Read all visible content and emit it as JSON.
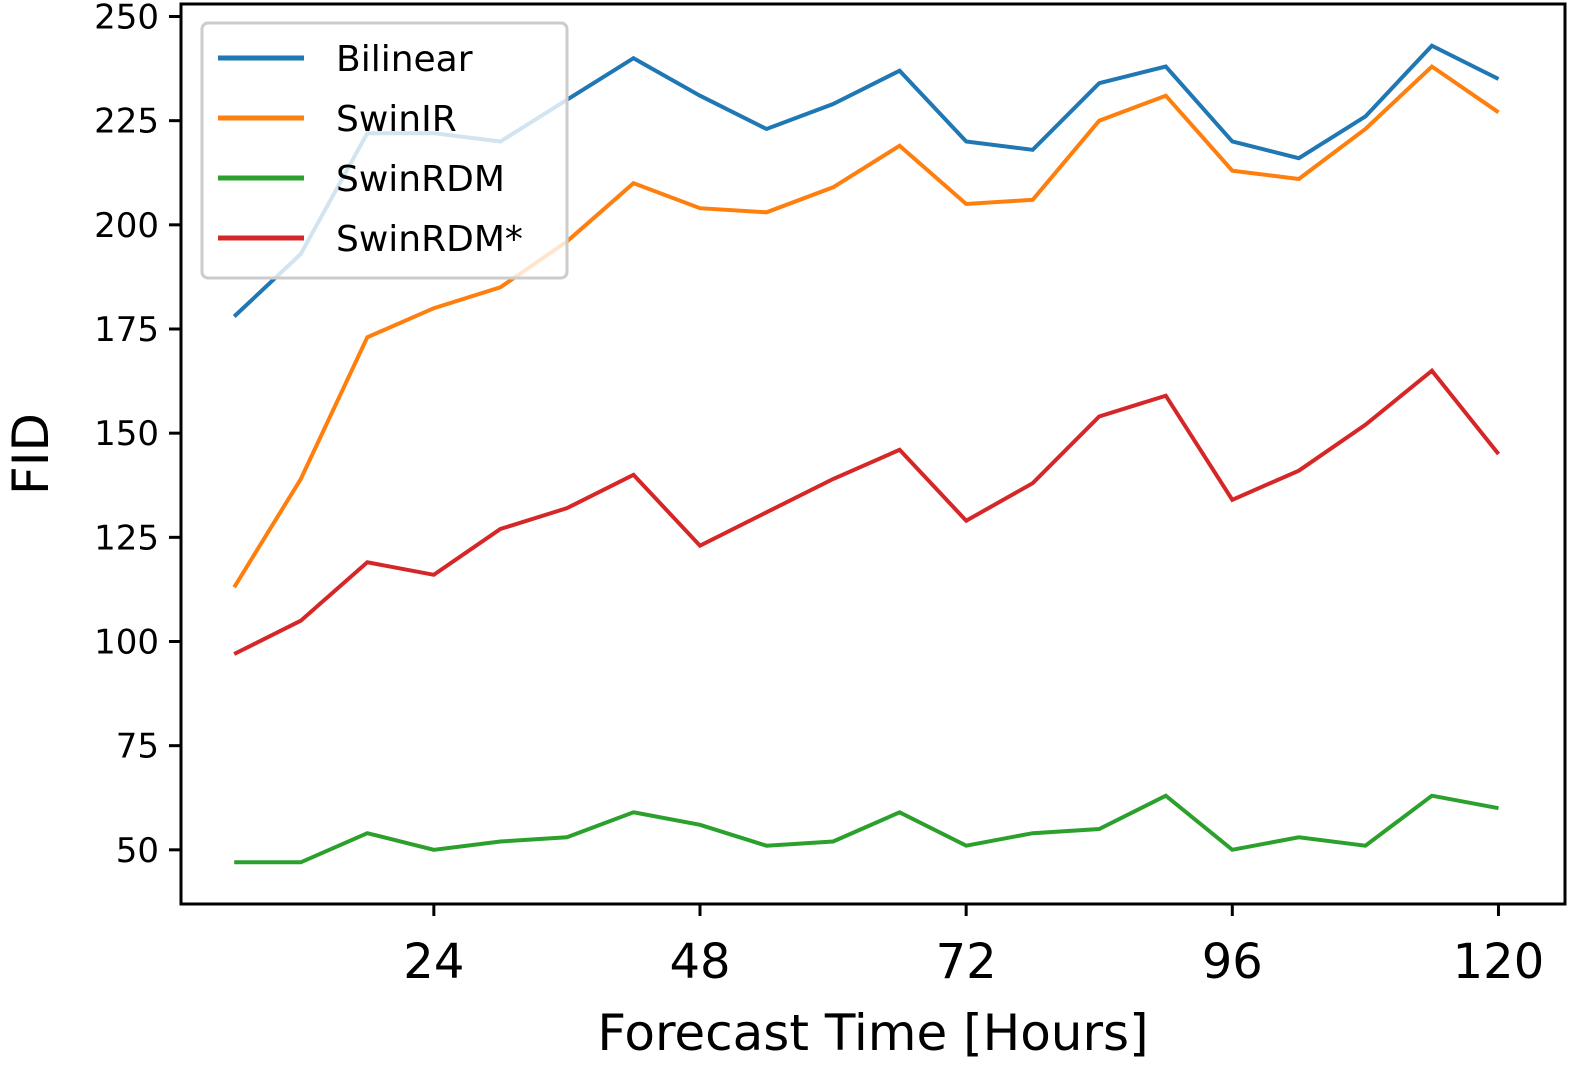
{
  "chart_data": {
    "type": "line",
    "xlabel": "Forecast Time [Hours]",
    "ylabel": "FID",
    "xlim": [
      1.2,
      126
    ],
    "ylim": [
      37,
      253
    ],
    "xticks": [
      24,
      48,
      72,
      96,
      120
    ],
    "yticks": [
      50,
      75,
      100,
      125,
      150,
      175,
      200,
      225,
      250
    ],
    "legend_position": "top-left",
    "grid": false,
    "x": [
      6,
      12,
      18,
      24,
      30,
      36,
      42,
      48,
      54,
      60,
      66,
      72,
      78,
      84,
      90,
      96,
      102,
      108,
      114,
      120
    ],
    "series": [
      {
        "name": "Bilinear",
        "color": "#1f77b4",
        "values": [
          178,
          193,
          222,
          222,
          220,
          230,
          240,
          231,
          223,
          229,
          237,
          220,
          218,
          234,
          238,
          220,
          216,
          226,
          243,
          235
        ]
      },
      {
        "name": "SwinIR",
        "color": "#ff7f0e",
        "values": [
          113,
          139,
          173,
          180,
          185,
          196,
          210,
          204,
          203,
          209,
          219,
          205,
          206,
          225,
          231,
          213,
          211,
          223,
          238,
          227
        ]
      },
      {
        "name": "SwinRDM",
        "color": "#2ca02c",
        "values": [
          47,
          47,
          54,
          50,
          52,
          53,
          59,
          56,
          51,
          52,
          59,
          51,
          54,
          55,
          63,
          50,
          53,
          51,
          63,
          60
        ]
      },
      {
        "name": "SwinRDM*",
        "color": "#d62728",
        "values": [
          97,
          105,
          119,
          116,
          127,
          132,
          140,
          123,
          131,
          139,
          146,
          129,
          138,
          154,
          159,
          134,
          141,
          152,
          165,
          145
        ]
      }
    ]
  }
}
